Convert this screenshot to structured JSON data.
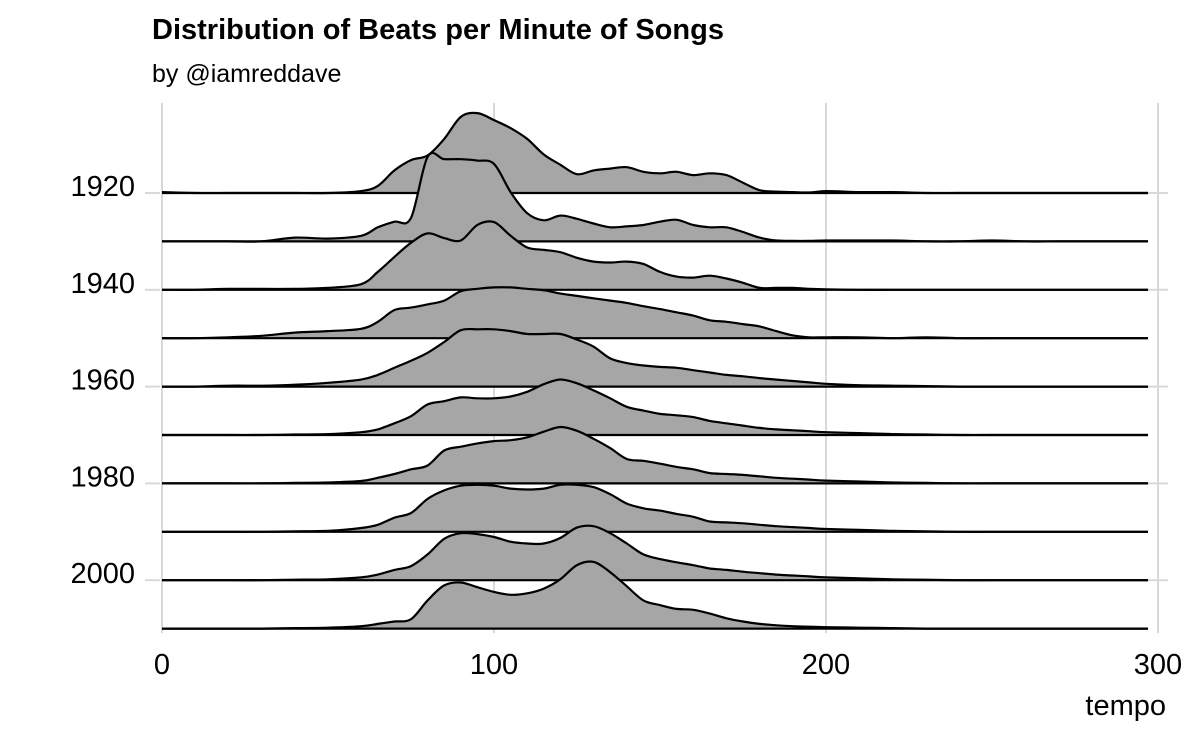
{
  "chart_data": {
    "type": "ridgeline",
    "title": "Distribution of Beats per Minute of Songs",
    "subtitle": "by @iamreddave",
    "xlabel": "tempo",
    "ylabel": "",
    "xlim": [
      0,
      300
    ],
    "x_ticks": [
      "0",
      "100",
      "200",
      "300"
    ],
    "x_tick_values": [
      0,
      100,
      200,
      300
    ],
    "y_tick_labels": [
      "1920",
      "1940",
      "1960",
      "1980",
      "2000"
    ],
    "y_tick_rows": [
      0,
      2,
      4,
      6,
      8
    ],
    "grid": true,
    "fill_color": "#a6a6a6",
    "line_color": "#000000",
    "grid_color": "#d9d9d9",
    "x": [
      0,
      10,
      20,
      30,
      40,
      50,
      60,
      65,
      70,
      75,
      80,
      85,
      90,
      95,
      100,
      105,
      110,
      115,
      120,
      125,
      130,
      135,
      140,
      145,
      150,
      155,
      160,
      165,
      170,
      175,
      180,
      185,
      190,
      195,
      200,
      210,
      220,
      230,
      240,
      250,
      260,
      270,
      280,
      290,
      297
    ],
    "series": [
      {
        "values": [
          0.02,
          0,
          0,
          0,
          0,
          0,
          0.04,
          0.15,
          0.48,
          0.7,
          0.8,
          1.15,
          1.62,
          1.7,
          1.55,
          1.38,
          1.15,
          0.82,
          0.6,
          0.4,
          0.48,
          0.52,
          0.55,
          0.45,
          0.42,
          0.45,
          0.38,
          0.42,
          0.38,
          0.22,
          0.06,
          0.03,
          0.02,
          0.01,
          0.04,
          0.02,
          0.02,
          0,
          0,
          0,
          0,
          0,
          0,
          0,
          0
        ]
      },
      {
        "values": [
          0,
          0,
          0,
          0,
          0.08,
          0.06,
          0.12,
          0.3,
          0.42,
          0.5,
          1.8,
          1.75,
          1.75,
          1.72,
          1.65,
          1.05,
          0.6,
          0.45,
          0.55,
          0.48,
          0.38,
          0.3,
          0.32,
          0.35,
          0.42,
          0.46,
          0.35,
          0.3,
          0.3,
          0.2,
          0.08,
          0.02,
          0.01,
          0.01,
          0.02,
          0.02,
          0.02,
          0,
          0,
          0.02,
          0,
          0,
          0,
          0,
          0
        ]
      },
      {
        "values": [
          0,
          0,
          0.02,
          0.02,
          0.02,
          0.04,
          0.12,
          0.38,
          0.7,
          1.0,
          1.2,
          1.1,
          1.05,
          1.38,
          1.44,
          1.15,
          0.9,
          0.85,
          0.8,
          0.68,
          0.6,
          0.58,
          0.6,
          0.55,
          0.38,
          0.28,
          0.26,
          0.3,
          0.24,
          0.15,
          0.04,
          0.04,
          0.04,
          0.02,
          0.01,
          0,
          0,
          0,
          0,
          0,
          0,
          0,
          0,
          0,
          0
        ]
      },
      {
        "values": [
          0,
          0,
          0.02,
          0.05,
          0.12,
          0.15,
          0.2,
          0.35,
          0.6,
          0.65,
          0.72,
          0.8,
          1.0,
          1.05,
          1.08,
          1.08,
          1.05,
          1.02,
          0.95,
          0.9,
          0.85,
          0.8,
          0.75,
          0.68,
          0.62,
          0.55,
          0.48,
          0.38,
          0.35,
          0.3,
          0.25,
          0.15,
          0.06,
          0.02,
          0.02,
          0.02,
          0,
          0.02,
          0,
          0,
          0,
          0,
          0,
          0,
          0
        ]
      },
      {
        "values": [
          0,
          0,
          0.02,
          0.02,
          0.04,
          0.08,
          0.15,
          0.25,
          0.4,
          0.55,
          0.72,
          0.95,
          1.2,
          1.22,
          1.22,
          1.18,
          1.12,
          1.12,
          1.12,
          1.0,
          0.85,
          0.6,
          0.5,
          0.45,
          0.42,
          0.4,
          0.35,
          0.3,
          0.25,
          0.22,
          0.18,
          0.15,
          0.12,
          0.09,
          0.06,
          0.03,
          0.02,
          0.01,
          0,
          0,
          0,
          0,
          0,
          0,
          0
        ]
      },
      {
        "values": [
          0,
          0,
          0,
          0,
          0.01,
          0.02,
          0.06,
          0.12,
          0.25,
          0.4,
          0.65,
          0.72,
          0.8,
          0.78,
          0.78,
          0.82,
          0.92,
          1.08,
          1.18,
          1.1,
          0.95,
          0.78,
          0.6,
          0.52,
          0.45,
          0.42,
          0.38,
          0.3,
          0.25,
          0.2,
          0.15,
          0.12,
          0.1,
          0.08,
          0.06,
          0.04,
          0.02,
          0.01,
          0,
          0,
          0,
          0,
          0,
          0,
          0
        ]
      },
      {
        "values": [
          0,
          0,
          0,
          0,
          0.01,
          0.02,
          0.05,
          0.12,
          0.2,
          0.3,
          0.38,
          0.7,
          0.78,
          0.85,
          0.9,
          0.92,
          0.98,
          1.1,
          1.2,
          1.12,
          0.95,
          0.75,
          0.52,
          0.48,
          0.42,
          0.35,
          0.3,
          0.22,
          0.2,
          0.18,
          0.15,
          0.12,
          0.1,
          0.08,
          0.06,
          0.04,
          0.02,
          0.01,
          0,
          0,
          0,
          0,
          0,
          0,
          0
        ]
      },
      {
        "values": [
          0,
          0,
          0,
          0,
          0.01,
          0.02,
          0.08,
          0.15,
          0.3,
          0.4,
          0.7,
          0.88,
          0.98,
          1.0,
          0.98,
          0.92,
          0.9,
          0.92,
          1.0,
          1.0,
          0.95,
          0.8,
          0.6,
          0.5,
          0.45,
          0.38,
          0.32,
          0.22,
          0.2,
          0.18,
          0.15,
          0.12,
          0.1,
          0.08,
          0.06,
          0.04,
          0.02,
          0.01,
          0,
          0,
          0,
          0,
          0,
          0,
          0
        ]
      },
      {
        "values": [
          0,
          0,
          0,
          0,
          0.01,
          0.02,
          0.06,
          0.12,
          0.22,
          0.3,
          0.55,
          0.88,
          1.0,
          0.98,
          0.92,
          0.82,
          0.78,
          0.78,
          0.9,
          1.12,
          1.15,
          1.0,
          0.78,
          0.55,
          0.45,
          0.38,
          0.32,
          0.25,
          0.22,
          0.18,
          0.15,
          0.12,
          0.1,
          0.08,
          0.06,
          0.04,
          0.02,
          0.01,
          0,
          0,
          0,
          0,
          0,
          0,
          0
        ]
      },
      {
        "values": [
          0,
          0,
          0,
          0,
          0.01,
          0.02,
          0.05,
          0.1,
          0.15,
          0.2,
          0.6,
          0.92,
          0.98,
          0.88,
          0.78,
          0.72,
          0.75,
          0.85,
          1.05,
          1.35,
          1.42,
          1.2,
          0.9,
          0.6,
          0.5,
          0.42,
          0.4,
          0.32,
          0.22,
          0.15,
          0.1,
          0.07,
          0.05,
          0.04,
          0.03,
          0.02,
          0.01,
          0,
          0,
          0,
          0,
          0,
          0,
          0,
          0
        ]
      }
    ]
  }
}
